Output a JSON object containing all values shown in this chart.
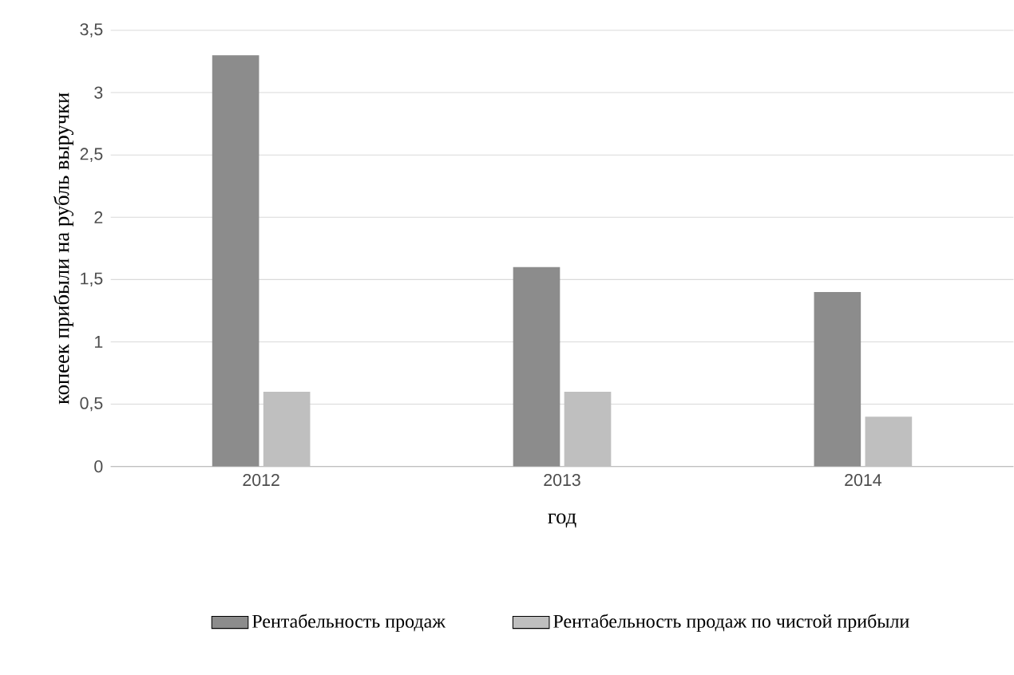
{
  "chart_data": {
    "type": "bar",
    "xlabel": "год",
    "ylabel": "копеек прибыли на рубль выручки",
    "categories": [
      "2012",
      "2013",
      "2014"
    ],
    "series": [
      {
        "name": "Рентабельность продаж",
        "color": "#8c8c8c",
        "values": [
          3.3,
          1.6,
          1.4
        ]
      },
      {
        "name": "Рентабельность продаж по чистой прибыли",
        "color": "#bfbfbf",
        "values": [
          0.6,
          0.6,
          0.4
        ]
      }
    ],
    "ylim": [
      0,
      3.5
    ],
    "yticks": [
      0,
      {
        "value": 0.5,
        "label": "0,5"
      },
      1,
      {
        "value": 1.5,
        "label": "1,5"
      },
      2,
      {
        "value": 2.5,
        "label": "2,5"
      },
      3,
      {
        "value": 3.5,
        "label": "3,5"
      }
    ],
    "grid": "y",
    "legend": "bottom"
  }
}
